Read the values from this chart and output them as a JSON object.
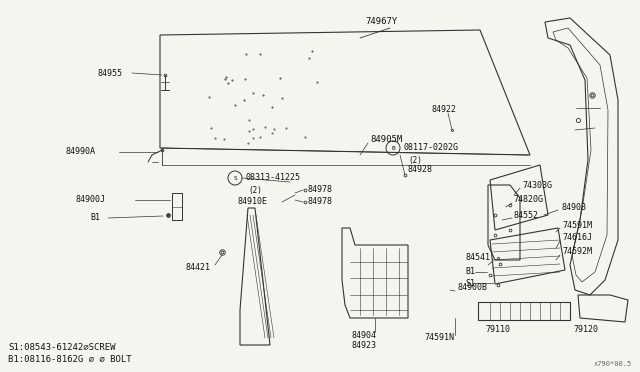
{
  "bg_color": "#f5f5f0",
  "line_color": "#333333",
  "text_color": "#111111",
  "fig_width": 6.4,
  "fig_height": 3.72,
  "dpi": 100,
  "footnote1": "S1:08543-61242∅SCREW",
  "footnote2": "B1:08116-8162G ∅ ∅ BOLT",
  "diagram_ref": "∧790*00.5"
}
